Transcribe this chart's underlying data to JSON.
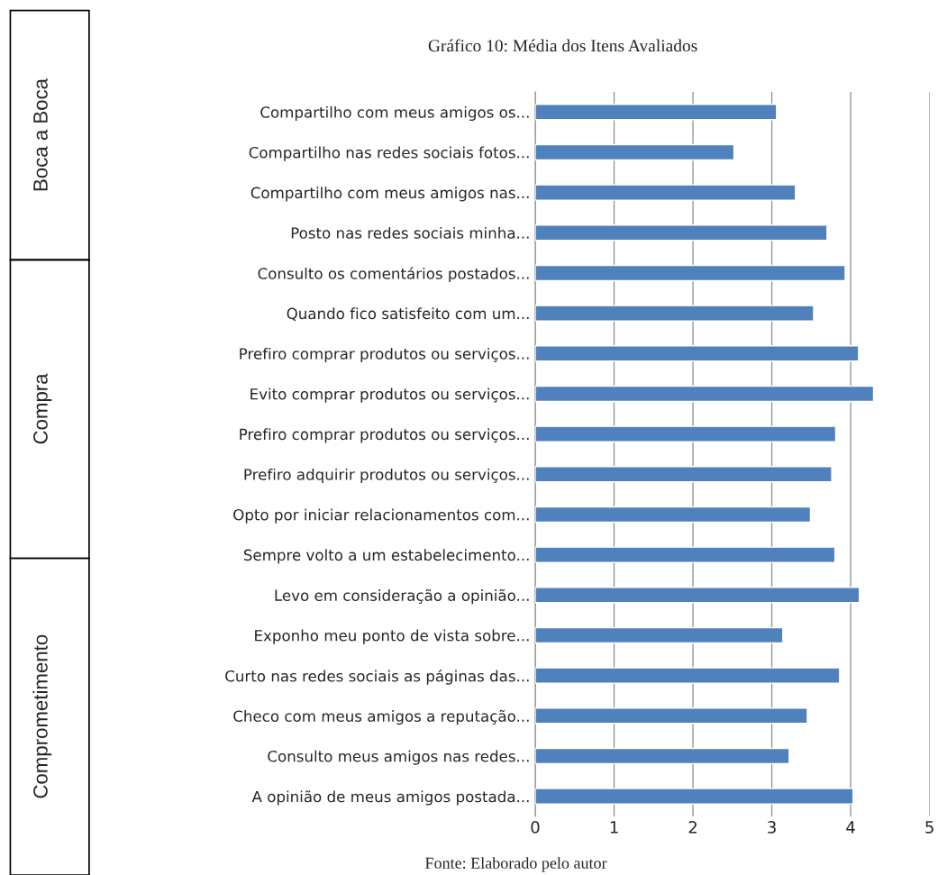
{
  "chart_data": {
    "type": "bar",
    "orientation": "horizontal",
    "title": "Gráfico 10: Média dos Itens Avaliados",
    "categories": [
      "Compartilho com meus amigos os...",
      "Compartilho nas redes sociais fotos...",
      "Compartilho com meus amigos nas...",
      "Posto nas redes sociais minha...",
      "Consulto os comentários postados...",
      "Quando fico satisfeito com um...",
      "Prefiro comprar produtos ou serviços...",
      "Evito comprar produtos ou serviços...",
      "Prefiro comprar produtos ou serviços...",
      "Prefiro adquirir produtos ou serviços...",
      "Opto por iniciar relacionamentos com...",
      "Sempre volto a um estabelecimento...",
      "Levo em consideração a opinião...",
      "Exponho meu ponto de vista sobre...",
      "Curto nas redes sociais as páginas das...",
      "Checo com meus amigos a reputação...",
      "Consulto meus amigos nas redes...",
      "A opinião de meus amigos postada..."
    ],
    "values": [
      3.06,
      2.52,
      3.3,
      3.7,
      3.93,
      3.53,
      4.1,
      4.29,
      3.81,
      3.76,
      3.49,
      3.8,
      4.11,
      3.14,
      3.86,
      3.45,
      3.22,
      4.03
    ],
    "color": "#4f81bd",
    "xlim": [
      0,
      5
    ],
    "xticks": [
      0,
      1,
      2,
      3,
      4,
      5
    ],
    "grid": "x",
    "annotations": [
      "Boca a Boca",
      "Compra",
      "Comprometimento",
      "Fonte: Elaborado pelo autor"
    ]
  }
}
